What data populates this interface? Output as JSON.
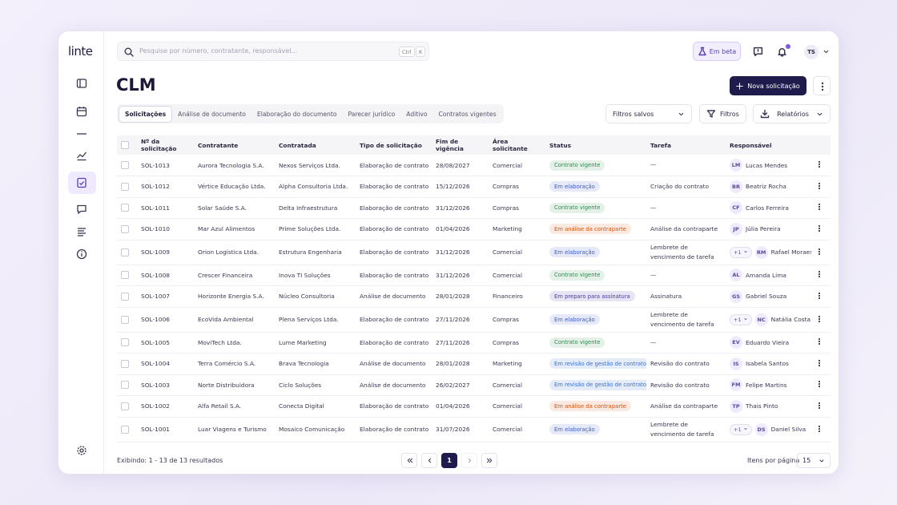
{
  "brand": "linte",
  "search": {
    "placeholder": "Pesquise por número, contratante, responsável...",
    "shortcut": [
      "Ctrl",
      "K"
    ]
  },
  "topbar": {
    "beta": "Em beta",
    "user_initials": "TS"
  },
  "page": {
    "title": "CLM",
    "new_button": "Nova solicitação"
  },
  "tabs": [
    "Solicitações",
    "Análise de documento",
    "Elaboração do documento",
    "Parecer jurídico",
    "Aditivo",
    "Contratos vigentes"
  ],
  "filters": {
    "saved": "Filtros salvos",
    "filters": "Filtros",
    "reports": "Relatórios"
  },
  "table": {
    "columns": [
      "Nº da solicitação",
      "Contratante",
      "Contratada",
      "Tipo de solicitação",
      "Fim de vigência",
      "Área solicitante",
      "Status",
      "Tarefa",
      "Responsável"
    ],
    "rows": [
      {
        "id": "SOL-1013",
        "contratante": "Aurora Tecnologia S.A.",
        "contratada": "Nexos Serviços Ltda.",
        "tipo": "Elaboração de contrato",
        "fim": "28/08/2027",
        "area": "Comercial",
        "status": "Contrato vigente",
        "status_color": "#2f8a4f",
        "tarefa": "—",
        "responsavel": {
          "initials": "LM",
          "name": "Lucas Mendes"
        }
      },
      {
        "id": "SOL-1012",
        "contratante": "Vértice Educação Ltda.",
        "contratada": "Alpha Consultoria Ltda.",
        "tipo": "Elaboração de contrato",
        "fim": "15/12/2026",
        "area": "Compras",
        "status": "Em elaboração",
        "status_color": "#3b5bcc",
        "tarefa": "Criação do contrato",
        "responsavel": {
          "initials": "BR",
          "name": "Beatriz Rocha"
        }
      },
      {
        "id": "SOL-1011",
        "contratante": "Solar Saúde S.A.",
        "contratada": "Delta Infraestrutura",
        "tipo": "Elaboração de contrato",
        "fim": "31/12/2026",
        "area": "Compras",
        "status": "Contrato vigente",
        "status_color": "#2f8a4f",
        "tarefa": "—",
        "responsavel": {
          "initials": "CF",
          "name": "Carlos Ferreira"
        }
      },
      {
        "id": "SOL-1010",
        "contratante": "Mar Azul Alimentos",
        "contratada": "Prime Soluções Ltda.",
        "tipo": "Elaboração de contrato",
        "fim": "01/04/2026",
        "area": "Marketing",
        "status": "Em análise da contraparte",
        "status_color": "#d4520f",
        "tarefa": "Análise da contraparte",
        "responsavel": {
          "initials": "JP",
          "name": "Júlia Pereira"
        }
      },
      {
        "id": "SOL-1009",
        "contratante": "Orion Logística Ltda.",
        "contratada": "Estrutura Engenharia",
        "tipo": "Elaboração de contrato",
        "fim": "31/12/2026",
        "area": "Comercial",
        "status": "Em elaboração",
        "status_color": "#3b5bcc",
        "tarefa": "Lembrete de vencimento de tarefa",
        "responsavel": {
          "extra": "+1",
          "initials": "RM",
          "name": "Rafael Moraes"
        }
      },
      {
        "id": "SOL-1008",
        "contratante": "Crescer Financeira",
        "contratada": "Inova TI Soluções",
        "tipo": "Elaboração de contrato",
        "fim": "31/12/2026",
        "area": "Comercial",
        "status": "Contrato vigente",
        "status_color": "#2f8a4f",
        "tarefa": "—",
        "responsavel": {
          "initials": "AL",
          "name": "Amanda Lima"
        }
      },
      {
        "id": "SOL-1007",
        "contratante": "Horizonte Energia S.A.",
        "contratada": "Núcleo Consultoria",
        "tipo": "Análise de documento",
        "fim": "28/01/2028",
        "area": "Financeiro",
        "status": "Em preparo para assinatura",
        "status_color": "#4a3aa8",
        "tarefa": "Assinatura",
        "responsavel": {
          "initials": "GS",
          "name": "Gabriel Souza"
        }
      },
      {
        "id": "SOL-1006",
        "contratante": "EcoVida Ambiental",
        "contratada": "Plena Serviços Ltda.",
        "tipo": "Elaboração de contrato",
        "fim": "27/11/2026",
        "area": "Compras",
        "status": "Em elaboração",
        "status_color": "#3b5bcc",
        "tarefa": "Lembrete de vencimento de tarefa",
        "responsavel": {
          "extra": "+1",
          "initials": "NC",
          "name": "Natália Costa"
        }
      },
      {
        "id": "SOL-1005",
        "contratante": "MoviTech Ltda.",
        "contratada": "Lume Marketing",
        "tipo": "Elaboração de contrato",
        "fim": "27/11/2026",
        "area": "Compras",
        "status": "Contrato vigente",
        "status_color": "#2f8a4f",
        "tarefa": "—",
        "responsavel": {
          "initials": "EV",
          "name": "Eduardo Vieira"
        }
      },
      {
        "id": "SOL-1004",
        "contratante": "Terra Comércio S.A.",
        "contratada": "Brava Tecnologia",
        "tipo": "Análise de documento",
        "fim": "28/01/2028",
        "area": "Marketing",
        "status": "Em revisão de gestão de contratos",
        "status_color": "#3a6fd0",
        "tarefa": "Revisão do contrato",
        "responsavel": {
          "initials": "IS",
          "name": "Isabela Santos"
        }
      },
      {
        "id": "SOL-1003",
        "contratante": "Norte Distribuidora",
        "contratada": "Ciclo Soluções",
        "tipo": "Análise de documento",
        "fim": "26/02/2027",
        "area": "Comercial",
        "status": "Em revisão de gestão de contratos",
        "status_color": "#3a6fd0",
        "tarefa": "Revisão do contrato",
        "responsavel": {
          "initials": "FM",
          "name": "Felipe Martins"
        }
      },
      {
        "id": "SOL-1002",
        "contratante": "Alfa Retail S.A.",
        "contratada": "Conecta Digital",
        "tipo": "Elaboração de contrato",
        "fim": "01/04/2026",
        "area": "Comercial",
        "status": "Em análise da contraparte",
        "status_color": "#d4520f",
        "tarefa": "Análise da contraparte",
        "responsavel": {
          "initials": "TP",
          "name": "Thais Pinto"
        }
      },
      {
        "id": "SOL-1001",
        "contratante": "Luar Viagens e Turismo",
        "contratada": "Mosaico Comunicação",
        "tipo": "Elaboração de contrato",
        "fim": "31/07/2026",
        "area": "Comercial",
        "status": "Em elaboração",
        "status_color": "#3b5bcc",
        "tarefa": "Lembrete de vencimento de tarefa",
        "responsavel": {
          "extra": "+1",
          "initials": "DS",
          "name": "Daniel Silva"
        }
      }
    ]
  },
  "footer": {
    "summary": "Exibindo: 1 - 13 de 13 resultados",
    "current_page": 1,
    "per_page_label": "Itens por página",
    "per_page": 15
  }
}
